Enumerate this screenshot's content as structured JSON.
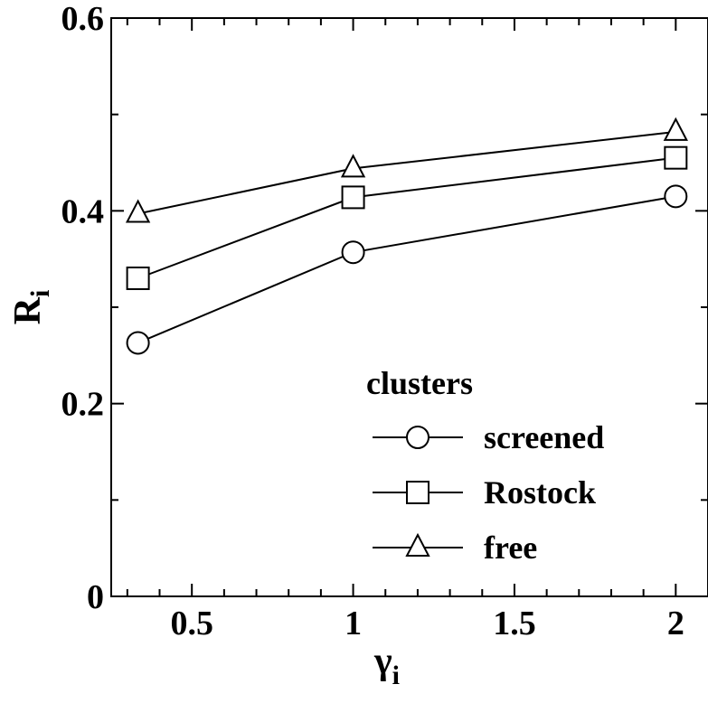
{
  "chart_data": {
    "type": "line",
    "x": [
      0.333,
      1,
      2
    ],
    "series": [
      {
        "name": "screened",
        "marker": "circle",
        "values": [
          0.263,
          0.357,
          0.415
        ]
      },
      {
        "name": "Rostock",
        "marker": "square",
        "values": [
          0.33,
          0.414,
          0.455
        ]
      },
      {
        "name": "free",
        "marker": "triangle",
        "values": [
          0.397,
          0.444,
          0.482
        ]
      }
    ],
    "xlabel_main": "γ",
    "xlabel_sub": "i",
    "ylabel_main": "R",
    "ylabel_sub": "i",
    "xlim": [
      0.25,
      2.1
    ],
    "ylim": [
      0,
      0.6
    ],
    "x_ticks": [
      0.5,
      1,
      1.5,
      2
    ],
    "x_tick_labels": [
      "0.5",
      "1",
      "1.5",
      "2"
    ],
    "y_ticks": [
      0,
      0.2,
      0.4,
      0.6
    ],
    "y_tick_labels": [
      "0",
      "0.2",
      "0.4",
      "0.6"
    ],
    "legend_title": "clusters",
    "legend_position": "bottom-right",
    "grid": false,
    "line_color": "#000000"
  }
}
